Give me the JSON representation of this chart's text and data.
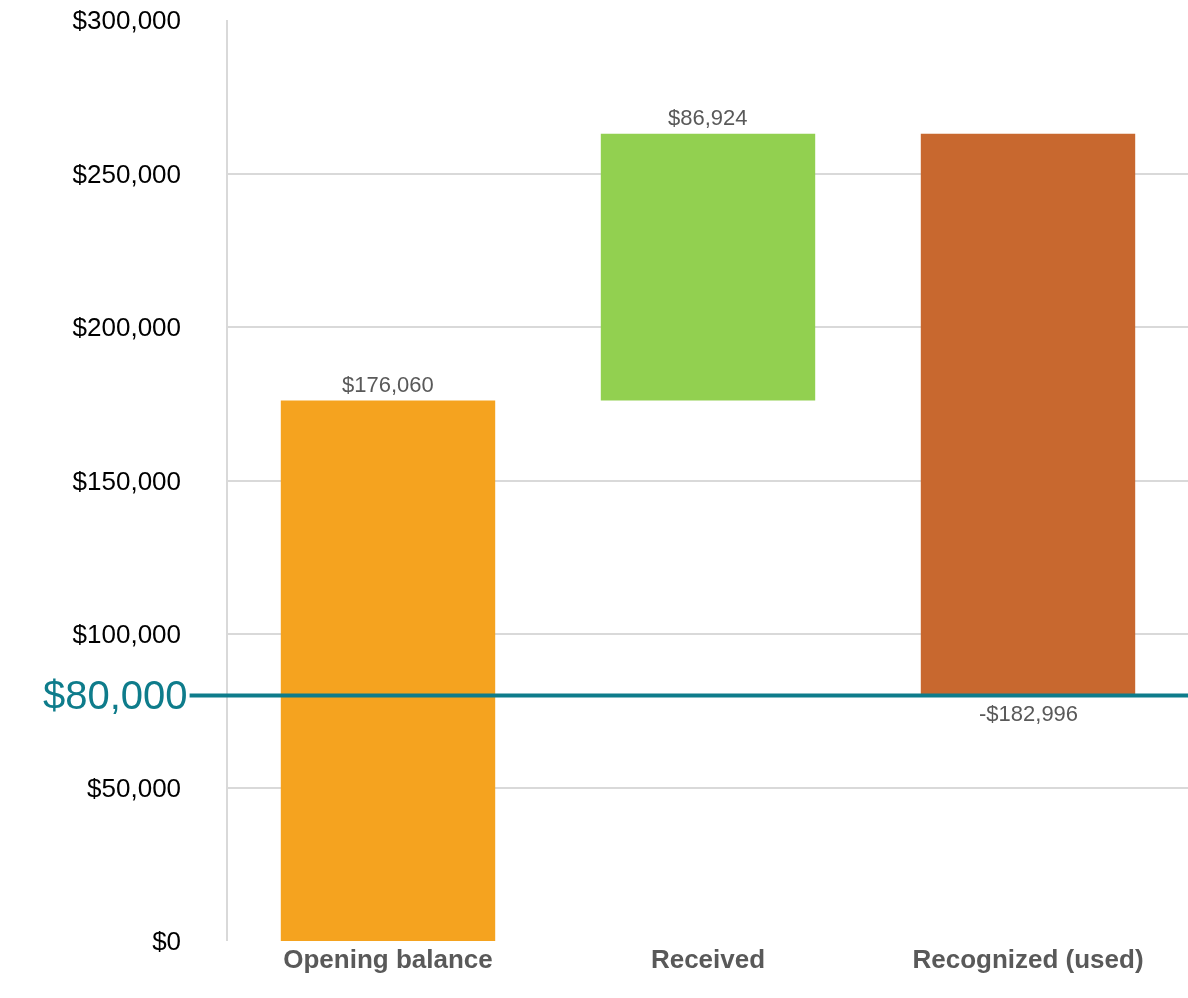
{
  "chart_data": {
    "type": "bar",
    "categories": [
      "Opening balance",
      "Received",
      "Recognized (used)"
    ],
    "values": [
      176060,
      86924,
      -182996
    ],
    "base": [
      0,
      176060,
      262984
    ],
    "colors": [
      "#f5a31f",
      "#92d050",
      "#c8682f"
    ],
    "value_labels": [
      "$176,060",
      "$86,924",
      "-$182,996"
    ],
    "ylim": [
      0,
      300000
    ],
    "yticks": [
      {
        "value": 0,
        "label": "$0"
      },
      {
        "value": 50000,
        "label": "$50,000"
      },
      {
        "value": 100000,
        "label": "$100,000"
      },
      {
        "value": 150000,
        "label": "$150,000"
      },
      {
        "value": 200000,
        "label": "$200,000"
      },
      {
        "value": 250000,
        "label": "$250,000"
      },
      {
        "value": 300000,
        "label": "$300,000"
      }
    ],
    "grid": "y",
    "legend": false,
    "ref_lines": [
      {
        "axis": "y",
        "value": 80000,
        "label": "$80,000",
        "color": "#0e7c8b",
        "line_style": "solid"
      }
    ]
  }
}
